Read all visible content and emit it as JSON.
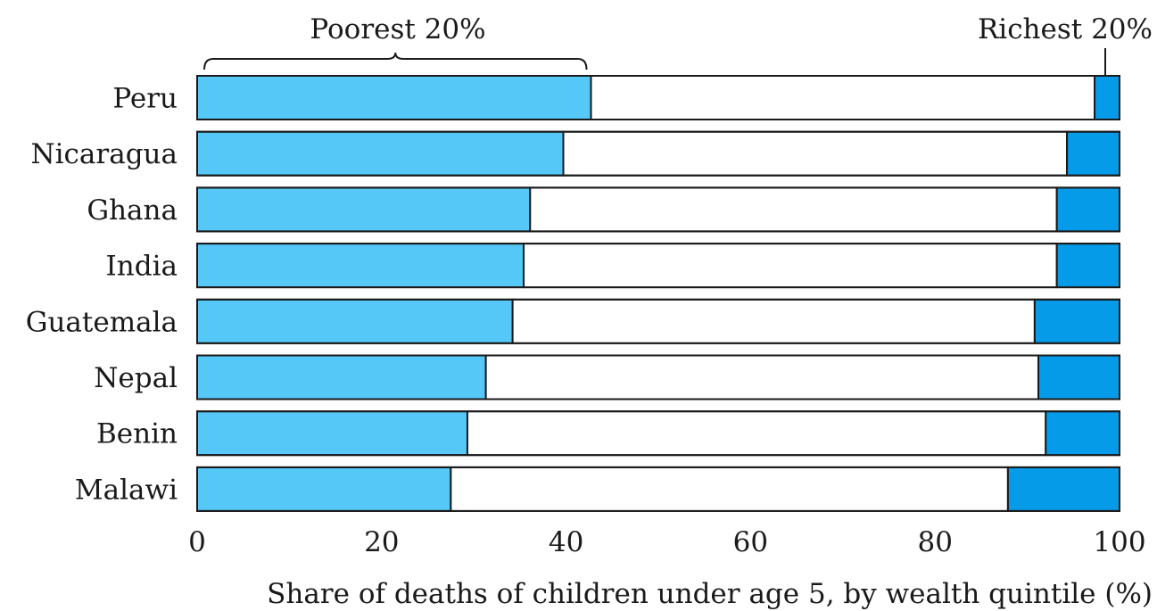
{
  "chart_data": {
    "type": "bar",
    "orientation": "horizontal",
    "stacked": true,
    "categories": [
      "Peru",
      "Nicaragua",
      "Ghana",
      "India",
      "Guatemala",
      "Nepal",
      "Benin",
      "Malawi"
    ],
    "series": [
      {
        "name": "Poorest 20%",
        "color": "#56c8f8",
        "values": [
          42.7,
          39.7,
          36.1,
          35.4,
          34.2,
          31.3,
          29.3,
          27.5
        ]
      },
      {
        "name": "",
        "color": "#ffffff",
        "values": [
          54.6,
          54.6,
          57.1,
          57.8,
          56.6,
          59.9,
          62.7,
          60.4
        ]
      },
      {
        "name": "Richest 20%",
        "color": "#069be8",
        "values": [
          2.7,
          5.7,
          6.8,
          6.8,
          9.2,
          8.8,
          8.0,
          12.1
        ]
      }
    ],
    "xlabel": "Share of deaths of children under age 5, by wealth quintile (%)",
    "ylabel": "",
    "title": "",
    "xlim": [
      0,
      100
    ],
    "xticks": [
      0,
      20,
      40,
      60,
      80,
      100
    ],
    "grid": false,
    "annotations": {
      "left": "Poorest 20%",
      "right": "Richest 20%"
    }
  }
}
